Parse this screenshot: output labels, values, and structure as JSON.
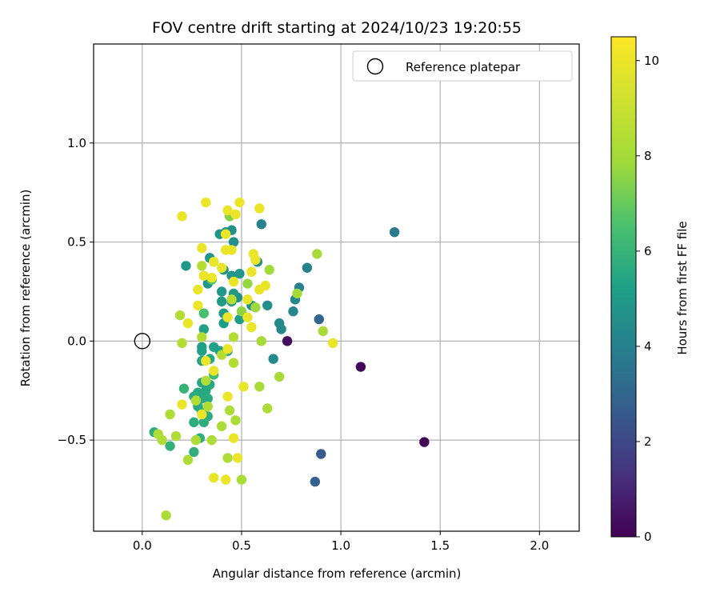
{
  "chart_data": {
    "type": "scatter",
    "title": "FOV centre drift starting at 2024/10/23 19:20:55",
    "xlabel": "Angular distance from reference (arcmin)",
    "ylabel": "Rotation from reference (arcmin)",
    "xlim": [
      -0.245,
      2.2
    ],
    "ylim": [
      -0.96,
      1.5
    ],
    "xticks": [
      0.0,
      0.5,
      1.0,
      1.5,
      2.0
    ],
    "xtick_labels": [
      "0.0",
      "0.5",
      "1.0",
      "1.5",
      "2.0"
    ],
    "yticks": [
      -0.5,
      0.0,
      0.5,
      1.0
    ],
    "ytick_labels": [
      "−0.5",
      "0.0",
      "0.5",
      "1.0"
    ],
    "grid": true,
    "legend": {
      "position": "top-right",
      "label": "Reference platepar"
    },
    "reference_point": {
      "x": 0.0,
      "y": 0.0
    },
    "colorbar": {
      "label": "Hours from first FF file",
      "range": [
        0,
        10.5
      ],
      "ticks": [
        0,
        2,
        4,
        6,
        8,
        10
      ],
      "tick_labels": [
        "0",
        "2",
        "4",
        "6",
        "8",
        "10"
      ],
      "colormap": "viridis"
    },
    "points": [
      {
        "x": 1.42,
        "y": -0.51,
        "h": 0.1
      },
      {
        "x": 1.1,
        "y": -0.13,
        "h": 0.2
      },
      {
        "x": 0.73,
        "y": 0.0,
        "h": 0.3
      },
      {
        "x": 0.9,
        "y": -0.57,
        "h": 2.6
      },
      {
        "x": 0.87,
        "y": -0.71,
        "h": 2.8
      },
      {
        "x": 0.89,
        "y": 0.11,
        "h": 3.0
      },
      {
        "x": 1.27,
        "y": 0.55,
        "h": 3.8
      },
      {
        "x": 0.6,
        "y": 0.59,
        "h": 4.0
      },
      {
        "x": 0.83,
        "y": 0.37,
        "h": 4.0
      },
      {
        "x": 0.79,
        "y": 0.27,
        "h": 4.1
      },
      {
        "x": 0.77,
        "y": 0.21,
        "h": 4.2
      },
      {
        "x": 0.76,
        "y": 0.15,
        "h": 4.2
      },
      {
        "x": 0.7,
        "y": 0.06,
        "h": 4.3
      },
      {
        "x": 0.69,
        "y": 0.09,
        "h": 4.3
      },
      {
        "x": 0.66,
        "y": -0.09,
        "h": 4.4
      },
      {
        "x": 0.63,
        "y": 0.18,
        "h": 4.5
      },
      {
        "x": 0.58,
        "y": 0.4,
        "h": 4.5
      },
      {
        "x": 0.55,
        "y": 0.18,
        "h": 4.6
      },
      {
        "x": 0.48,
        "y": 0.22,
        "h": 4.6
      },
      {
        "x": 0.46,
        "y": 0.5,
        "h": 4.6
      },
      {
        "x": 0.45,
        "y": 0.56,
        "h": 4.7
      },
      {
        "x": 0.42,
        "y": 0.55,
        "h": 4.7
      },
      {
        "x": 0.39,
        "y": 0.54,
        "h": 4.7
      },
      {
        "x": 0.34,
        "y": 0.42,
        "h": 4.8
      },
      {
        "x": 0.41,
        "y": 0.36,
        "h": 4.8
      },
      {
        "x": 0.45,
        "y": 0.33,
        "h": 4.8
      },
      {
        "x": 0.49,
        "y": 0.34,
        "h": 4.9
      },
      {
        "x": 0.22,
        "y": 0.38,
        "h": 4.9
      },
      {
        "x": 0.33,
        "y": 0.29,
        "h": 4.9
      },
      {
        "x": 0.4,
        "y": 0.25,
        "h": 4.9
      },
      {
        "x": 0.46,
        "y": 0.24,
        "h": 5.0
      },
      {
        "x": 0.4,
        "y": 0.2,
        "h": 5.0
      },
      {
        "x": 0.45,
        "y": 0.2,
        "h": 5.0
      },
      {
        "x": 0.41,
        "y": 0.14,
        "h": 5.1
      },
      {
        "x": 0.49,
        "y": 0.11,
        "h": 5.1
      },
      {
        "x": 0.41,
        "y": 0.09,
        "h": 5.1
      },
      {
        "x": 0.31,
        "y": 0.06,
        "h": 5.2
      },
      {
        "x": 0.3,
        "y": -0.03,
        "h": 5.2
      },
      {
        "x": 0.3,
        "y": -0.05,
        "h": 5.2
      },
      {
        "x": 0.36,
        "y": -0.03,
        "h": 5.3
      },
      {
        "x": 0.39,
        "y": -0.05,
        "h": 5.3
      },
      {
        "x": 0.43,
        "y": -0.05,
        "h": 5.3
      },
      {
        "x": 0.3,
        "y": -0.1,
        "h": 5.4
      },
      {
        "x": 0.34,
        "y": -0.09,
        "h": 5.4
      },
      {
        "x": 0.3,
        "y": -0.21,
        "h": 5.4
      },
      {
        "x": 0.34,
        "y": -0.22,
        "h": 5.5
      },
      {
        "x": 0.32,
        "y": -0.25,
        "h": 5.5
      },
      {
        "x": 0.28,
        "y": -0.26,
        "h": 5.5
      },
      {
        "x": 0.26,
        "y": -0.28,
        "h": 5.6
      },
      {
        "x": 0.3,
        "y": -0.29,
        "h": 5.6
      },
      {
        "x": 0.33,
        "y": -0.29,
        "h": 5.6
      },
      {
        "x": 0.28,
        "y": -0.33,
        "h": 5.6
      },
      {
        "x": 0.3,
        "y": -0.36,
        "h": 5.7
      },
      {
        "x": 0.33,
        "y": -0.38,
        "h": 5.7
      },
      {
        "x": 0.26,
        "y": -0.41,
        "h": 5.7
      },
      {
        "x": 0.31,
        "y": -0.41,
        "h": 5.7
      },
      {
        "x": 0.29,
        "y": -0.49,
        "h": 5.8
      },
      {
        "x": 0.26,
        "y": -0.56,
        "h": 5.8
      },
      {
        "x": 0.06,
        "y": -0.46,
        "h": 5.8
      },
      {
        "x": 0.14,
        "y": -0.53,
        "h": 5.9
      },
      {
        "x": 0.21,
        "y": -0.24,
        "h": 6.0
      },
      {
        "x": 0.36,
        "y": -0.17,
        "h": 6.3
      },
      {
        "x": 0.31,
        "y": 0.14,
        "h": 6.5
      },
      {
        "x": 0.35,
        "y": 0.31,
        "h": 6.7
      },
      {
        "x": 0.44,
        "y": 0.63,
        "h": 7.5
      },
      {
        "x": 0.5,
        "y": 0.15,
        "h": 7.6
      },
      {
        "x": 0.53,
        "y": 0.29,
        "h": 7.7
      },
      {
        "x": 0.57,
        "y": 0.17,
        "h": 7.8
      },
      {
        "x": 0.64,
        "y": 0.36,
        "h": 7.9
      },
      {
        "x": 0.78,
        "y": 0.24,
        "h": 8.0
      },
      {
        "x": 0.88,
        "y": 0.44,
        "h": 8.1
      },
      {
        "x": 0.91,
        "y": 0.05,
        "h": 8.1
      },
      {
        "x": 0.6,
        "y": 0.0,
        "h": 8.1
      },
      {
        "x": 0.69,
        "y": -0.18,
        "h": 8.1
      },
      {
        "x": 0.59,
        "y": -0.23,
        "h": 8.1
      },
      {
        "x": 0.63,
        "y": -0.34,
        "h": 8.2
      },
      {
        "x": 0.47,
        "y": -0.4,
        "h": 8.2
      },
      {
        "x": 0.44,
        "y": -0.35,
        "h": 8.2
      },
      {
        "x": 0.4,
        "y": -0.43,
        "h": 8.2
      },
      {
        "x": 0.35,
        "y": -0.5,
        "h": 8.2
      },
      {
        "x": 0.27,
        "y": -0.5,
        "h": 8.2
      },
      {
        "x": 0.23,
        "y": -0.6,
        "h": 8.2
      },
      {
        "x": 0.43,
        "y": -0.59,
        "h": 8.2
      },
      {
        "x": 0.5,
        "y": -0.7,
        "h": 8.2
      },
      {
        "x": 0.12,
        "y": -0.88,
        "h": 8.2
      },
      {
        "x": 0.08,
        "y": -0.47,
        "h": 8.3
      },
      {
        "x": 0.1,
        "y": -0.5,
        "h": 8.3
      },
      {
        "x": 0.17,
        "y": -0.48,
        "h": 8.3
      },
      {
        "x": 0.14,
        "y": -0.37,
        "h": 8.3
      },
      {
        "x": 0.27,
        "y": -0.3,
        "h": 8.3
      },
      {
        "x": 0.33,
        "y": -0.33,
        "h": 8.3
      },
      {
        "x": 0.32,
        "y": -0.2,
        "h": 8.3
      },
      {
        "x": 0.4,
        "y": -0.07,
        "h": 8.4
      },
      {
        "x": 0.46,
        "y": -0.11,
        "h": 8.4
      },
      {
        "x": 0.2,
        "y": -0.01,
        "h": 8.4
      },
      {
        "x": 0.3,
        "y": 0.02,
        "h": 8.4
      },
      {
        "x": 0.46,
        "y": 0.02,
        "h": 8.4
      },
      {
        "x": 0.19,
        "y": 0.13,
        "h": 8.4
      },
      {
        "x": 0.3,
        "y": 0.38,
        "h": 8.5
      },
      {
        "x": 0.45,
        "y": 0.21,
        "h": 8.5
      },
      {
        "x": 0.2,
        "y": 0.63,
        "h": 10.0
      },
      {
        "x": 0.32,
        "y": 0.7,
        "h": 10.0
      },
      {
        "x": 0.43,
        "y": 0.66,
        "h": 10.0
      },
      {
        "x": 0.47,
        "y": 0.64,
        "h": 10.0
      },
      {
        "x": 0.49,
        "y": 0.7,
        "h": 10.0
      },
      {
        "x": 0.59,
        "y": 0.67,
        "h": 10.0
      },
      {
        "x": 0.3,
        "y": 0.47,
        "h": 10.0
      },
      {
        "x": 0.42,
        "y": 0.54,
        "h": 10.0
      },
      {
        "x": 0.42,
        "y": 0.46,
        "h": 10.0
      },
      {
        "x": 0.45,
        "y": 0.46,
        "h": 10.0
      },
      {
        "x": 0.56,
        "y": 0.44,
        "h": 10.0
      },
      {
        "x": 0.57,
        "y": 0.41,
        "h": 10.0
      },
      {
        "x": 0.36,
        "y": 0.4,
        "h": 10.0
      },
      {
        "x": 0.4,
        "y": 0.37,
        "h": 10.0
      },
      {
        "x": 0.31,
        "y": 0.33,
        "h": 10.0
      },
      {
        "x": 0.35,
        "y": 0.32,
        "h": 10.0
      },
      {
        "x": 0.55,
        "y": 0.35,
        "h": 10.0
      },
      {
        "x": 0.46,
        "y": 0.3,
        "h": 10.0
      },
      {
        "x": 0.62,
        "y": 0.28,
        "h": 10.0
      },
      {
        "x": 0.59,
        "y": 0.26,
        "h": 10.0
      },
      {
        "x": 0.28,
        "y": 0.26,
        "h": 10.0
      },
      {
        "x": 0.53,
        "y": 0.21,
        "h": 10.0
      },
      {
        "x": 0.28,
        "y": 0.18,
        "h": 10.0
      },
      {
        "x": 0.53,
        "y": 0.12,
        "h": 10.0
      },
      {
        "x": 0.43,
        "y": 0.12,
        "h": 10.0
      },
      {
        "x": 0.23,
        "y": 0.09,
        "h": 10.0
      },
      {
        "x": 0.55,
        "y": 0.07,
        "h": 10.0
      },
      {
        "x": 0.96,
        "y": -0.01,
        "h": 10.0
      },
      {
        "x": 0.43,
        "y": -0.04,
        "h": 10.0
      },
      {
        "x": 0.32,
        "y": -0.1,
        "h": 10.0
      },
      {
        "x": 0.36,
        "y": -0.15,
        "h": 10.0
      },
      {
        "x": 0.51,
        "y": -0.23,
        "h": 10.0
      },
      {
        "x": 0.43,
        "y": -0.28,
        "h": 10.0
      },
      {
        "x": 0.2,
        "y": -0.32,
        "h": 10.0
      },
      {
        "x": 0.3,
        "y": -0.37,
        "h": 10.0
      },
      {
        "x": 0.46,
        "y": -0.49,
        "h": 10.0
      },
      {
        "x": 0.36,
        "y": -0.69,
        "h": 10.0
      },
      {
        "x": 0.42,
        "y": -0.7,
        "h": 10.0
      },
      {
        "x": 0.48,
        "y": -0.59,
        "h": 10.0
      }
    ]
  }
}
